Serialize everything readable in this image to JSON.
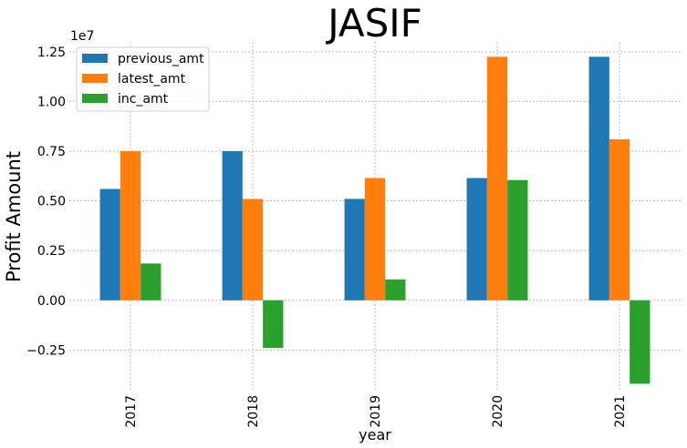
{
  "chart_data": {
    "type": "bar",
    "title": "JASIF",
    "xlabel": "year",
    "ylabel": "Profit Amount",
    "y_offset_text": "1e7",
    "categories": [
      "2017",
      "2018",
      "2019",
      "2020",
      "2021"
    ],
    "series": [
      {
        "name": "previous_amt",
        "color": "#1f77b4",
        "values": [
          5600000,
          7500000,
          5100000,
          6150000,
          12250000
        ]
      },
      {
        "name": "latest_amt",
        "color": "#ff7f0e",
        "values": [
          7500000,
          5100000,
          6150000,
          12250000,
          8100000
        ]
      },
      {
        "name": "inc_amt",
        "color": "#2ca02c",
        "values": [
          1850000,
          -2400000,
          1050000,
          6050000,
          -4200000
        ]
      }
    ],
    "y_ticks": [
      -2500000,
      0,
      2500000,
      5000000,
      7500000,
      10000000,
      12500000
    ],
    "y_tick_labels": [
      "−0.25",
      "0.00",
      "0.25",
      "0.50",
      "0.75",
      "1.00",
      "1.25"
    ],
    "ylim": [
      -4500000,
      13000000
    ],
    "grid": true,
    "legend_position": "upper left"
  }
}
